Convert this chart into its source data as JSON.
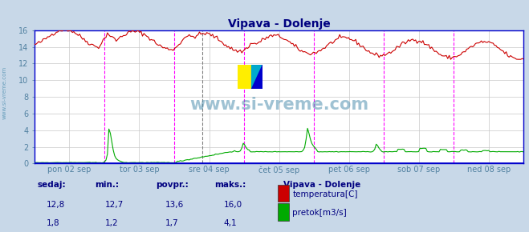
{
  "title": "Vipava - Dolenje",
  "title_color": "#000080",
  "fig_bg_color": "#c8d8e8",
  "plot_bg_color": "#ffffff",
  "grid_color": "#c8c8c8",
  "border_color": "#0000cc",
  "ylim": [
    0,
    16
  ],
  "yticks": [
    0,
    2,
    4,
    6,
    8,
    10,
    12,
    14,
    16
  ],
  "x_labels": [
    "pon 02 sep",
    "tor 03 sep",
    "sre 04 sep",
    "čet 05 sep",
    "pet 06 sep",
    "sob 07 sep",
    "ned 08 sep"
  ],
  "vline_color_magenta": "#ff00ff",
  "vline_color_gray": "#808080",
  "temp_color": "#cc0000",
  "flow_color": "#00aa00",
  "watermark_text": "www.si-vreme.com",
  "watermark_color": "#5090b0",
  "sidebar_text": "www.si-vreme.com",
  "sidebar_color": "#5090b0",
  "legend_title": "Vipava - Dolenje",
  "legend_title_color": "#000080",
  "legend_items": [
    "temperatura[C]",
    "pretok[m3/s]"
  ],
  "legend_colors": [
    "#cc0000",
    "#00aa00"
  ],
  "table_headers": [
    "sedaj:",
    "min.:",
    "povpr.:",
    "maks.:"
  ],
  "table_row1": [
    "12,8",
    "12,7",
    "13,6",
    "16,0"
  ],
  "table_row2": [
    "1,8",
    "1,2",
    "1,7",
    "4,1"
  ],
  "table_color": "#000080",
  "n_points": 336,
  "tick_color": "#5080a0"
}
